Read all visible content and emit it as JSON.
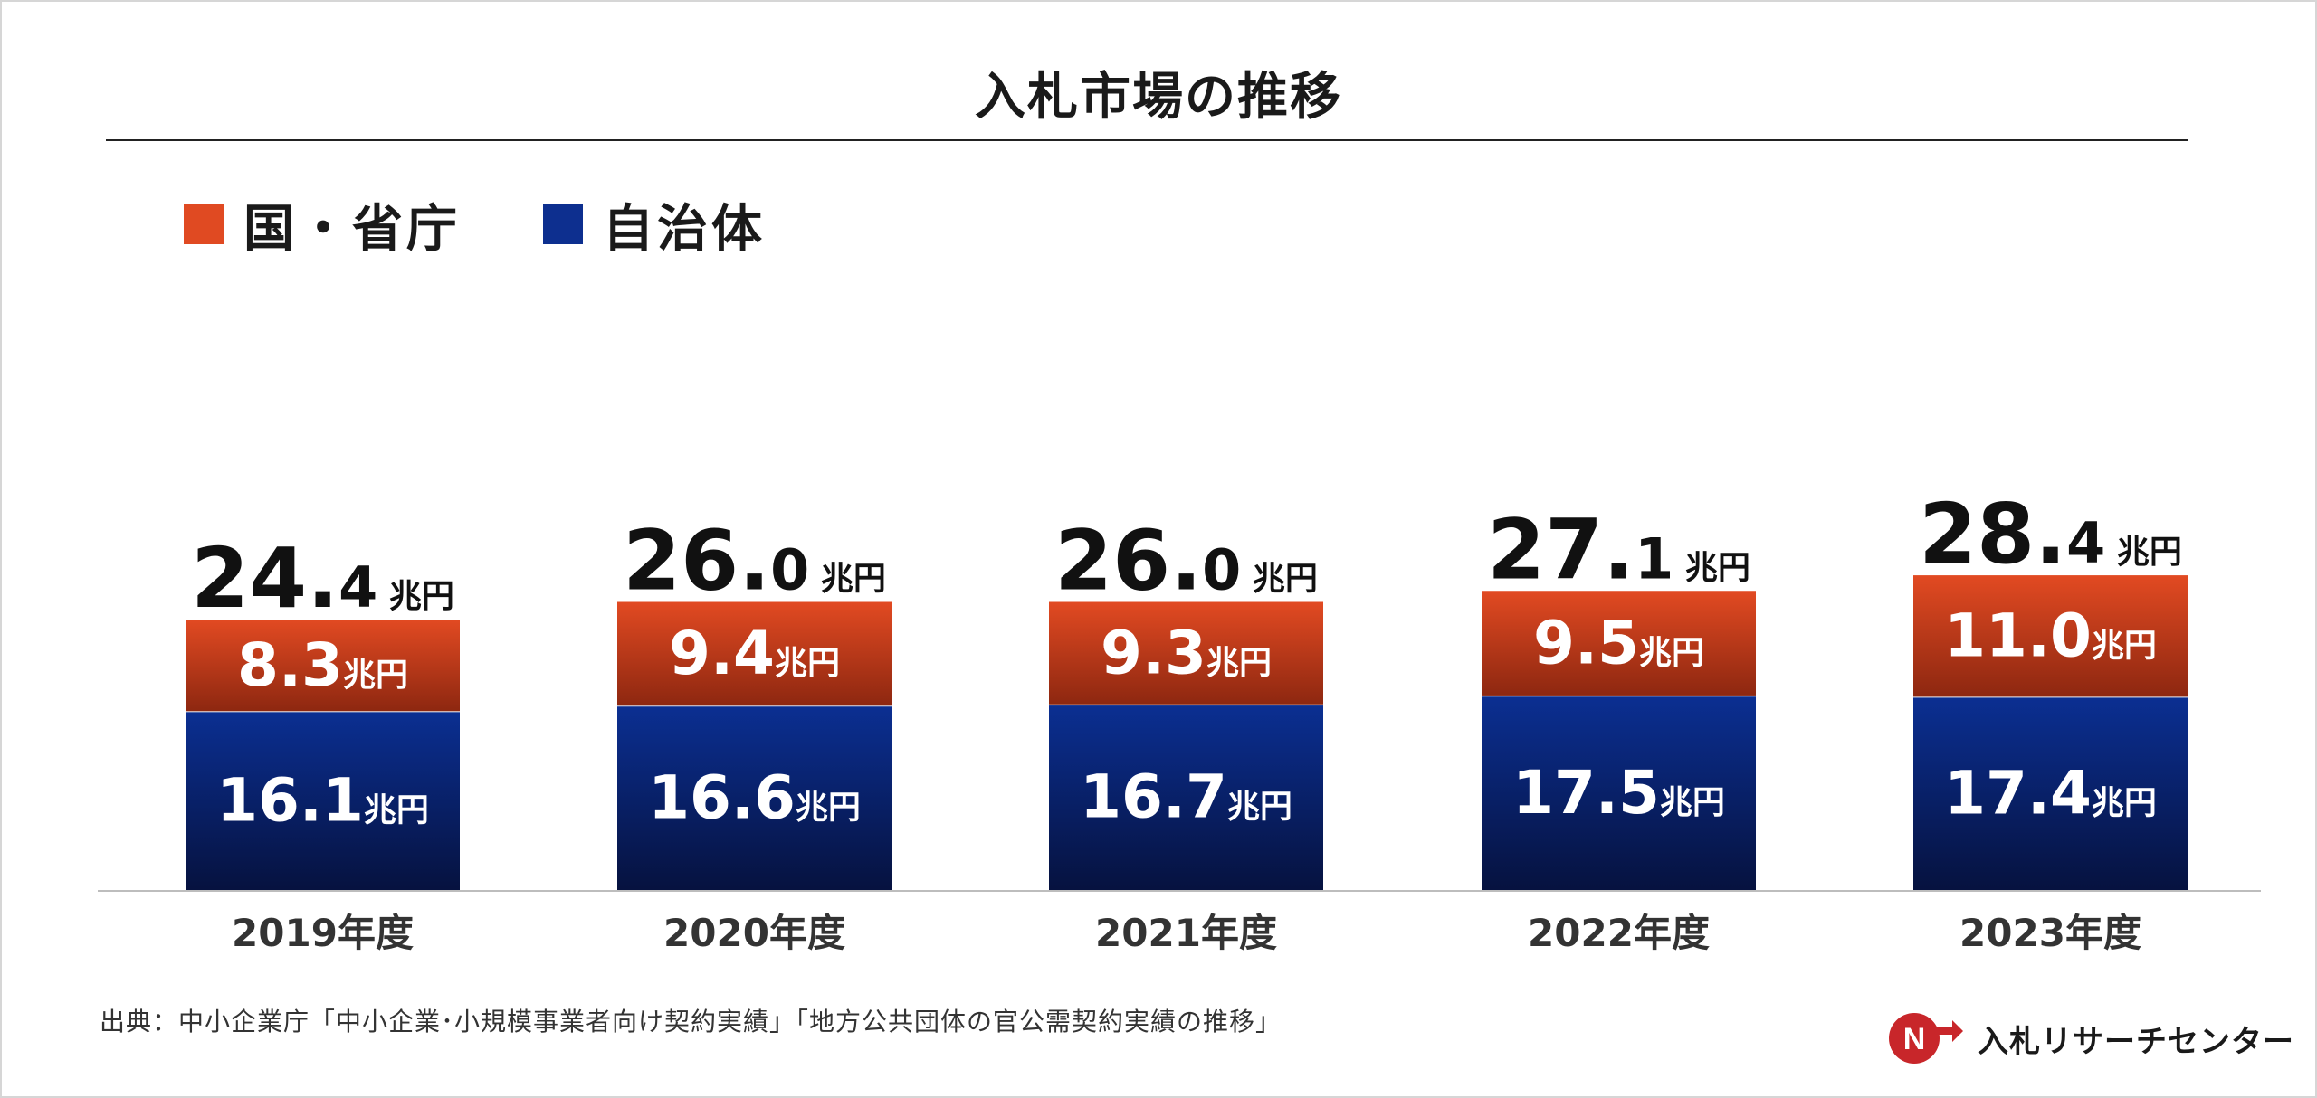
{
  "chart_data": {
    "type": "bar",
    "stacked": true,
    "title": "入札市場の推移",
    "categories": [
      "2019年度",
      "2020年度",
      "2021年度",
      "2022年度",
      "2023年度"
    ],
    "series": [
      {
        "name": "自治体",
        "values": [
          16.1,
          16.6,
          16.7,
          17.5,
          17.4
        ],
        "labels": [
          "16.1",
          "16.6",
          "16.7",
          "17.5",
          "17.4"
        ],
        "color_top": "#0b2f92",
        "color_bottom": "#06123f"
      },
      {
        "name": "国・省庁",
        "values": [
          8.3,
          9.4,
          9.3,
          9.5,
          11.0
        ],
        "labels": [
          "8.3",
          "9.4",
          "9.3",
          "9.5",
          "11.0"
        ],
        "color_top": "#e24a22",
        "color_bottom": "#8d2710"
      }
    ],
    "totals": [
      {
        "int": "24.",
        "dec": "4"
      },
      {
        "int": "26.",
        "dec": "0"
      },
      {
        "int": "26.",
        "dec": "0"
      },
      {
        "int": "27.",
        "dec": "1"
      },
      {
        "int": "28.",
        "dec": "4"
      }
    ],
    "unit": "兆円",
    "legend_position": "top-left",
    "grid": false
  },
  "legend": [
    {
      "label": "国・省庁",
      "color": "#e04a22"
    },
    {
      "label": "自治体",
      "color": "#0d2f8f"
    }
  ],
  "source": "出典：中小企業庁「中小企業･小規模事業者向け契約実績」「地方公共団体の官公需契約実績の推移」",
  "logo": {
    "text": "入札リサーチセンター",
    "mark": "N",
    "mark_color": "#c8262a"
  }
}
